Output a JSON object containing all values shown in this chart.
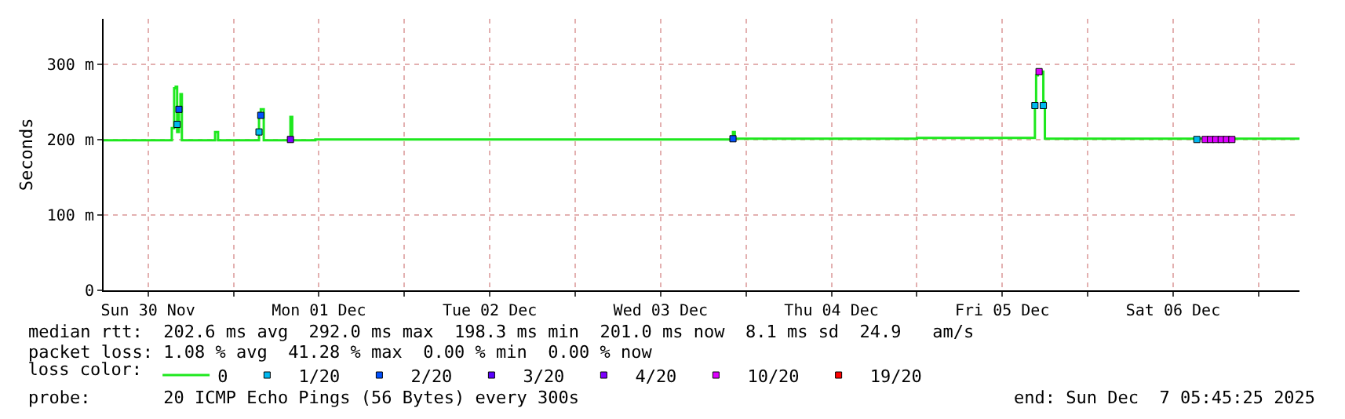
{
  "chart_data": {
    "type": "line",
    "ylabel": "Seconds",
    "legend_title": "loss color:",
    "legend": "bottom",
    "grid": true,
    "xlim": [
      "2025-11-30T05:45",
      "2025-12-07T05:45"
    ],
    "xticks": [
      {
        "value": "2025-11-30T12:00",
        "label": "Sun 30 Nov"
      },
      {
        "value": "2025-12-01T00:00",
        "label": null
      },
      {
        "value": "2025-12-01T12:00",
        "label": "Mon 01 Dec"
      },
      {
        "value": "2025-12-02T00:00",
        "label": null
      },
      {
        "value": "2025-12-02T12:00",
        "label": "Tue 02 Dec"
      },
      {
        "value": "2025-12-03T00:00",
        "label": null
      },
      {
        "value": "2025-12-03T12:00",
        "label": "Wed 03 Dec"
      },
      {
        "value": "2025-12-04T00:00",
        "label": null
      },
      {
        "value": "2025-12-04T12:00",
        "label": "Thu 04 Dec"
      },
      {
        "value": "2025-12-05T00:00",
        "label": null
      },
      {
        "value": "2025-12-05T12:00",
        "label": "Fri 05 Dec"
      },
      {
        "value": "2025-12-06T00:00",
        "label": null
      },
      {
        "value": "2025-12-06T12:00",
        "label": "Sat 06 Dec"
      },
      {
        "value": "2025-12-07T00:00",
        "label": null
      }
    ],
    "ylim": [
      0,
      360
    ],
    "yticks": [
      0,
      {
        "value": 100,
        "label": "100 m"
      },
      {
        "value": 200,
        "label": "200 m"
      },
      {
        "value": 300,
        "label": "300 m"
      }
    ],
    "series": [
      {
        "name": "0",
        "color": "#1ee81e",
        "marker": "none",
        "x": [
          "2025-11-30T05:45",
          "2025-11-30T15:00",
          "2025-11-30T15:20",
          "2025-11-30T15:40",
          "2025-11-30T15:53",
          "2025-11-30T16:05",
          "2025-11-30T16:20",
          "2025-11-30T16:33",
          "2025-11-30T16:45",
          "2025-11-30T21:10",
          "2025-11-30T21:25",
          "2025-11-30T21:50",
          "2025-12-01T03:20",
          "2025-12-01T03:35",
          "2025-12-01T03:50",
          "2025-12-01T04:15",
          "2025-12-01T07:45",
          "2025-12-01T08:00",
          "2025-12-01T08:15",
          "2025-12-01T11:15",
          "2025-12-01T11:30",
          "2025-12-03T22:00",
          "2025-12-03T22:10",
          "2025-12-03T22:25",
          "2025-12-05T00:00",
          "2025-12-05T16:27",
          "2025-12-05T16:35",
          "2025-12-05T16:45",
          "2025-12-05T17:00",
          "2025-12-05T17:30",
          "2025-12-05T17:46",
          "2025-12-05T17:59",
          "2025-12-07T05:45"
        ],
        "values": [
          199,
          199,
          215,
          268,
          270,
          210,
          240,
          260,
          199,
          199,
          210,
          199,
          199,
          235,
          240,
          199,
          199,
          230,
          199,
          199,
          200,
          200,
          210,
          201,
          202,
          202,
          245,
          285,
          290,
          290,
          250,
          201,
          200
        ]
      },
      {
        "name": "1/20",
        "type": "scatter",
        "color": "#00b8f0",
        "x": [
          "2025-11-30T16:05",
          "2025-12-01T03:35",
          "2025-12-05T16:35",
          "2025-12-05T17:46",
          "2025-12-06T15:20"
        ],
        "values": [
          220,
          210,
          245,
          245,
          200
        ]
      },
      {
        "name": "2/20",
        "type": "scatter",
        "color": "#0050ff",
        "x": [
          "2025-11-30T16:20",
          "2025-12-01T03:50",
          "2025-12-03T22:10"
        ],
        "values": [
          240,
          232,
          201
        ]
      },
      {
        "name": "3/20",
        "type": "scatter",
        "color": "#5a00ff"
      },
      {
        "name": "4/20",
        "type": "scatter",
        "color": "#7e00ff",
        "x": [
          "2025-12-01T08:00"
        ],
        "values": [
          200
        ]
      },
      {
        "name": "10/20",
        "type": "scatter",
        "color": "#dd00ff",
        "x": [
          "2025-12-05T17:10",
          "2025-12-06T16:30",
          "2025-12-06T17:15",
          "2025-12-06T18:00",
          "2025-12-06T18:45",
          "2025-12-06T19:30",
          "2025-12-06T20:15"
        ],
        "values": [
          290,
          200,
          200,
          200,
          200,
          200,
          200
        ]
      },
      {
        "name": "19/20",
        "type": "scatter",
        "color": "#ff0000"
      }
    ],
    "marker": "square",
    "line_style": "solid",
    "annotations": [
      "median rtt:  202.6 ms avg  292.0 ms max  198.3 ms min  201.0 ms now  8.1 ms sd  24.9   am/s",
      "packet loss: 1.08 % avg  41.28 % max  0.00 % min  0.00 % now",
      "probe:       20 ICMP Echo Pings (56 Bytes) every 300s",
      "end: Sun Dec  7 05:45:25 2025"
    ]
  }
}
